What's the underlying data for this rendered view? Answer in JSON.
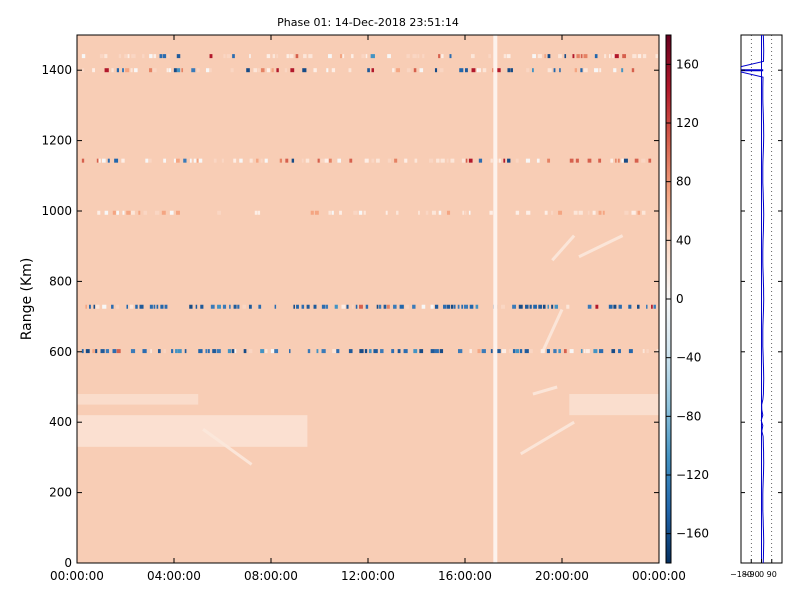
{
  "chart_data": [
    {
      "type": "heatmap",
      "title": "Phase 01: 14-Dec-2018 23:51:14",
      "xlabel": "",
      "ylabel": "Range (Km)",
      "x_tick_labels": [
        "00:00:00",
        "04:00:00",
        "08:00:00",
        "12:00:00",
        "16:00:00",
        "20:00:00",
        "00:00:00"
      ],
      "x_tick_hours": [
        0,
        4,
        8,
        12,
        16,
        20,
        24
      ],
      "xlim_hours": [
        0,
        24
      ],
      "y_ticks": [
        0,
        200,
        400,
        600,
        800,
        1000,
        1200,
        1400
      ],
      "ylim": [
        0,
        1500
      ],
      "colormap": "diverging blue-white-red",
      "background_value": 45,
      "colorbar": {
        "ticks": [
          160,
          120,
          80,
          40,
          0,
          -40,
          -80,
          -120,
          -160
        ],
        "range": [
          -180,
          180
        ],
        "stops": [
          "#053061",
          "#2166ac",
          "#4393c3",
          "#92c5de",
          "#d1e5f0",
          "#f7f7f7",
          "#fddbc7",
          "#f4a582",
          "#d6604d",
          "#b2182b",
          "#67001f"
        ]
      },
      "bands": [
        {
          "range_km": 1440,
          "strength": 0.55,
          "kind": "mixed"
        },
        {
          "range_km": 1400,
          "strength": 0.8,
          "kind": "mixed"
        },
        {
          "range_km": 1143,
          "strength": 0.65,
          "kind": "mixed"
        },
        {
          "range_km": 995,
          "strength": 0.35,
          "kind": "faint"
        },
        {
          "range_km": 728,
          "strength": 1.0,
          "kind": "blue"
        },
        {
          "range_km": 602,
          "strength": 1.0,
          "kind": "blue"
        }
      ],
      "gap_hour": 17.25
    },
    {
      "type": "line",
      "series": [
        {
          "values_hint": "profile mostly near 0–20 with a spike toward -180 at ~1400 km"
        }
      ],
      "x_tick_labels": [
        "-180",
        "-90",
        "0",
        "90"
      ],
      "x_ticks": [
        -180,
        -90,
        0,
        90
      ],
      "xlim": [
        -180,
        180
      ],
      "ylim": [
        0,
        1500
      ],
      "line_color": "#0000cc"
    }
  ]
}
